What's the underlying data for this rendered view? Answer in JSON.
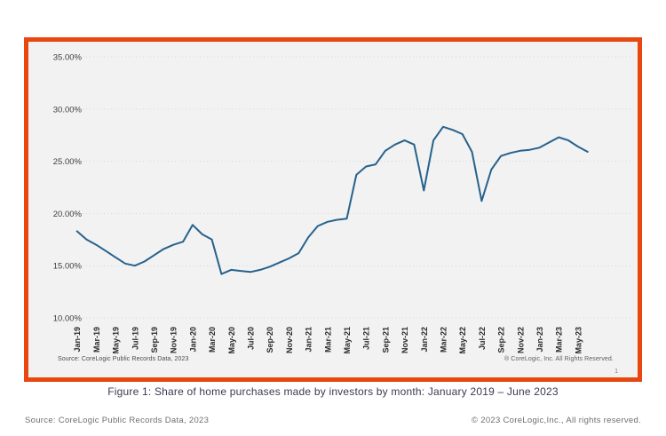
{
  "figure_box": {
    "border_color": "#e8470f",
    "background": "#f2f2f2"
  },
  "chart_data": {
    "type": "line",
    "series_name": "Share of home purchases made by investors",
    "x": [
      "Jan-19",
      "Feb-19",
      "Mar-19",
      "Apr-19",
      "May-19",
      "Jun-19",
      "Jul-19",
      "Aug-19",
      "Sep-19",
      "Oct-19",
      "Nov-19",
      "Dec-19",
      "Jan-20",
      "Feb-20",
      "Mar-20",
      "Apr-20",
      "May-20",
      "Jun-20",
      "Jul-20",
      "Aug-20",
      "Sep-20",
      "Oct-20",
      "Nov-20",
      "Dec-20",
      "Jan-21",
      "Feb-21",
      "Mar-21",
      "Apr-21",
      "May-21",
      "Jun-21",
      "Jul-21",
      "Aug-21",
      "Sep-21",
      "Oct-21",
      "Nov-21",
      "Dec-21",
      "Jan-22",
      "Feb-22",
      "Mar-22",
      "Apr-22",
      "May-22",
      "Jun-22",
      "Jul-22",
      "Aug-22",
      "Sep-22",
      "Oct-22",
      "Nov-22",
      "Dec-22",
      "Jan-23",
      "Feb-23",
      "Mar-23",
      "Apr-23",
      "May-23",
      "Jun-23"
    ],
    "values": [
      18.3,
      17.5,
      17.0,
      16.4,
      15.8,
      15.2,
      15.0,
      15.4,
      16.0,
      16.6,
      17.0,
      17.3,
      18.9,
      18.0,
      17.5,
      14.2,
      14.6,
      14.5,
      14.4,
      14.6,
      14.9,
      15.3,
      15.7,
      16.2,
      17.7,
      18.8,
      19.2,
      19.4,
      19.5,
      23.7,
      24.5,
      24.7,
      26.0,
      26.6,
      27.0,
      26.6,
      22.2,
      27.0,
      28.3,
      28.0,
      27.6,
      25.9,
      21.2,
      24.2,
      25.5,
      25.8,
      26.0,
      26.1,
      26.3,
      26.8,
      27.3,
      27.0,
      26.4,
      25.9
    ],
    "x_tick_labels": [
      "Jan-19",
      "Mar-19",
      "May-19",
      "Jul-19",
      "Sep-19",
      "Nov-19",
      "Jan-20",
      "Mar-20",
      "May-20",
      "Jul-20",
      "Sep-20",
      "Nov-20",
      "Jan-21",
      "Mar-21",
      "May-21",
      "Jul-21",
      "Sep-21",
      "Nov-21",
      "Jan-22",
      "Mar-22",
      "May-22",
      "Jul-22",
      "Sep-22",
      "Nov-22",
      "Jan-23",
      "Mar-23",
      "May-23"
    ],
    "y_tick_labels": [
      "35.00%",
      "30.00%",
      "25.00%",
      "20.00%",
      "15.00%",
      "10.00%"
    ],
    "ylim": [
      10,
      35
    ],
    "grid": "horizontal-dotted",
    "legend": "none",
    "line_color": "#26628c",
    "tick_text_color": "#2b2b2b",
    "grid_color": "#d8d8d8"
  },
  "chart_annotations": {
    "source_note": "Source: CoreLogic Public Records Data, 2023",
    "rights_note": "® CoreLogic, Inc. All Rights Reserved.",
    "page_number": "1"
  },
  "caption": "Figure 1: Share of home purchases made by investors by month: January 2019 – June 2023",
  "footer": {
    "source": "Source: CoreLogic Public Records Data, 2023",
    "copyright": "© 2023 CoreLogic,Inc., All rights reserved."
  }
}
